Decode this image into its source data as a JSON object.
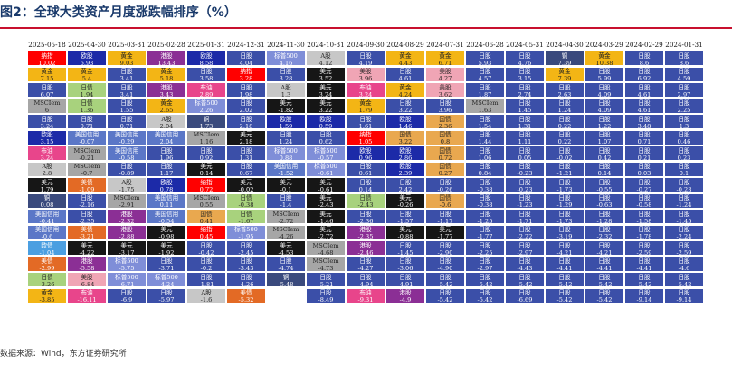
{
  "figure": {
    "title": "图2：全球大类资产月度涨跌幅排序（%）",
    "source": "数据来源：Wind，东方证券研究所"
  },
  "colors": {
    "纳指": "#ff0000",
    "欧股": "#1c2aa8",
    "黄金": "#f3b515",
    "港股": "#8b2f95",
    "欧债": "#4b9fe1",
    "日股": "#3b4fa8",
    "标普500": "#7f8ed8",
    "A股": "#c7c7c7",
    "美债": "#e36a25",
    "铜": "#3a4a7d",
    "日债": "#a8d27d",
    "美股": "#f0a5b5",
    "布油": "#e8458b",
    "美元": "#161616",
    "美国信用": "#5b77c7",
    "MSCIem": "#a6a6a6",
    "国债": "#e9a84f",
    "大宗": "#6a9f3e"
  },
  "chart_data": {
    "type": "table",
    "title": "全球大类资产月度涨跌幅排序（%）",
    "months": [
      "2025-05-18",
      "2025-04-30",
      "2025-03-31",
      "2025-02-28",
      "2025-01-31",
      "2024-12-31",
      "2024-11-30",
      "2024-10-31",
      "2024-09-30",
      "2024-08-29",
      "2024-07-31",
      "2024-06-28",
      "2024-05-31",
      "2024-04-30",
      "2024-03-29",
      "2024-02-29",
      "2024-01-31"
    ],
    "columns": [
      [
        [
          "纳指",
          "10.02"
        ],
        [
          "黄金",
          "7.15"
        ],
        [
          "日股",
          "6.07"
        ],
        [
          "MSCIem",
          "6"
        ],
        [
          "日股",
          "3.24"
        ],
        [
          "欧股",
          "3.15"
        ],
        [
          "布油",
          "3.24"
        ],
        [
          "A股",
          "2.8"
        ],
        [
          "美元",
          "1.79"
        ],
        [
          "铜",
          "0.08"
        ],
        [
          "美国信用",
          "-0.41"
        ],
        [
          "美国信用",
          "-0.6"
        ],
        [
          "欧债",
          "-1.04"
        ],
        [
          "美债",
          "-2.99"
        ],
        [
          "日债",
          "-3.26"
        ],
        [
          "黄金",
          "-3.85"
        ]
      ],
      [
        [
          "欧股",
          "6.93"
        ],
        [
          "黄金",
          "5.4"
        ],
        [
          "日债",
          "1.94"
        ],
        [
          "日债",
          "1.36"
        ],
        [
          "日股",
          "0.71"
        ],
        [
          "美国信用",
          "-0.07"
        ],
        [
          "MSCIem",
          "-0.21"
        ],
        [
          "MSCIem",
          "-0.7"
        ],
        [
          "美债",
          "-1.09"
        ],
        [
          "日股",
          "-2.16"
        ],
        [
          "日股",
          "-2.35"
        ],
        [
          "美债",
          "-3.21"
        ],
        [
          "美元",
          "-4.22"
        ],
        [
          "港股",
          "-5.58"
        ],
        [
          "美股",
          "-6.84"
        ],
        [
          "布油",
          "-16.11"
        ]
      ],
      [
        [
          "黄金",
          "9.03"
        ],
        [
          "日股",
          "3.41"
        ],
        [
          "日股",
          "3.41"
        ],
        [
          "日股",
          "1.55"
        ],
        [
          "日股",
          "0.71"
        ],
        [
          "美国信用",
          "-0.29"
        ],
        [
          "美国信用",
          "-0.58"
        ],
        [
          "日股",
          "-0.89"
        ],
        [
          "A股",
          "-1.75"
        ],
        [
          "MSCIem",
          "-2.91"
        ],
        [
          "港股",
          "-2.32"
        ],
        [
          "港股",
          "-2.88"
        ],
        [
          "美元",
          "-3.17"
        ],
        [
          "标普500",
          "-5.75"
        ],
        [
          "标普500",
          "-6.71"
        ],
        [
          "日股",
          "-6.9"
        ]
      ],
      [
        [
          "港股",
          "13.43"
        ],
        [
          "黄金",
          "5.18"
        ],
        [
          "港股",
          "3.43"
        ],
        [
          "黄金",
          "2.65"
        ],
        [
          "A股",
          "2.04"
        ],
        [
          "美国信用",
          "2.04"
        ],
        [
          "日股",
          "1.96"
        ],
        [
          "日股",
          "1.17"
        ],
        [
          "欧股",
          "0.78"
        ],
        [
          "美国信用",
          "0.11"
        ],
        [
          "美国信用",
          "-0.54"
        ],
        [
          "美元",
          "-0.98"
        ],
        [
          "美元",
          "-1.92"
        ],
        [
          "日股",
          "-3.71"
        ],
        [
          "标普500",
          "-4.24"
        ],
        [
          "日股",
          "-5.97"
        ]
      ],
      [
        [
          "欧股",
          "8.58"
        ],
        [
          "日股",
          "3.58"
        ],
        [
          "布油",
          "2.89"
        ],
        [
          "标普500",
          "2.26"
        ],
        [
          "铜",
          "1.73"
        ],
        [
          "MSCIem",
          "1.16"
        ],
        [
          "日股",
          "0.92"
        ],
        [
          "美元",
          "0.14"
        ],
        [
          "纳指",
          "0.72"
        ],
        [
          "MSCIem",
          "0.55"
        ],
        [
          "国债",
          "0.41"
        ],
        [
          "纳指",
          "0.45"
        ],
        [
          "日股",
          "-0.42"
        ],
        [
          "日股",
          "-0.2"
        ],
        [
          "日股",
          "-1.81"
        ],
        [
          "A股",
          "-1.6"
        ]
      ],
      [
        [
          "日股",
          "4.04"
        ],
        [
          "纳指",
          "3.28"
        ],
        [
          "日股",
          "1.98"
        ],
        [
          "日股",
          "2.02"
        ],
        [
          "日股",
          "2.18"
        ],
        [
          "美元",
          "2.18"
        ],
        [
          "日股",
          "1.31"
        ],
        [
          "日股",
          "0.67"
        ],
        [
          "美元",
          "-0.02"
        ],
        [
          "日债",
          "-0.38"
        ],
        [
          "日债",
          "-1.67"
        ],
        [
          "标普500",
          "-1.95"
        ],
        [
          "日股",
          "-2.45"
        ],
        [
          "日股",
          "-3.43"
        ],
        [
          "日股",
          "-4.26"
        ],
        [
          "美债",
          "-5.32"
        ]
      ],
      [
        [
          "标普500",
          "4.16"
        ],
        [
          "日股",
          "3.28"
        ],
        [
          "A股",
          "1.3"
        ],
        [
          "美元",
          "-1.82"
        ],
        [
          "欧股",
          "1.59"
        ],
        [
          "日股",
          "1.24"
        ],
        [
          "标普500",
          "0.88"
        ],
        [
          "美国信用",
          "-1.52"
        ],
        [
          "美元",
          "-0.1"
        ],
        [
          "日股",
          "-1.4"
        ],
        [
          "MSCIem",
          "-2.72"
        ],
        [
          "MSCIem",
          "-4.26"
        ],
        [
          "美元",
          "-4.53"
        ],
        [
          "日股",
          "-4.74"
        ],
        [
          "铜",
          "-5.48"
        ]
      ],
      [
        [
          "A股",
          "4.12"
        ],
        [
          "美元",
          "3.52"
        ],
        [
          "美元",
          "3.24"
        ],
        [
          "美元",
          "3.22"
        ],
        [
          "欧股",
          "0.59"
        ],
        [
          "日股",
          "0.62"
        ],
        [
          "标普500",
          "-0.57"
        ],
        [
          "标普500",
          "-0.61"
        ],
        [
          "美元",
          "-0.61"
        ],
        [
          "美元",
          "-2.43"
        ],
        [
          "美元",
          "-1.46"
        ],
        [
          "美元",
          "-2.72"
        ],
        [
          "MSCIem",
          "-4.68"
        ],
        [
          "MSCIem",
          "-4.73"
        ],
        [
          "日股",
          "-5.21"
        ],
        [
          "日股",
          "-8.49"
        ]
      ],
      [
        [
          "日股",
          "4.19"
        ],
        [
          "美股",
          "3.96"
        ],
        [
          "布油",
          "3.24"
        ],
        [
          "黄金",
          "1.79"
        ],
        [
          "日股",
          "1.61"
        ],
        [
          "纳指",
          "1.05"
        ],
        [
          "欧股",
          "0.96"
        ],
        [
          "日股",
          "0.61"
        ],
        [
          "日股",
          "0.14"
        ],
        [
          "日债",
          "-2.43"
        ],
        [
          "日股",
          "-2.36"
        ],
        [
          "港股",
          "-2.35"
        ],
        [
          "港股",
          "-2.46"
        ],
        [
          "日股",
          "-4.27"
        ],
        [
          "日股",
          "-4.94"
        ],
        [
          "布油",
          "-9.31"
        ]
      ],
      [
        [
          "黄金",
          "4.43"
        ],
        [
          "日股",
          "4.61"
        ],
        [
          "黄金",
          "4.24"
        ],
        [
          "日股",
          "3.22"
        ],
        [
          "欧股",
          "1.46"
        ],
        [
          "国债",
          "3.22"
        ],
        [
          "欧股",
          "2.86"
        ],
        [
          "欧股",
          "2.39"
        ],
        [
          "日股",
          "2.42"
        ],
        [
          "美元",
          "-0.26"
        ],
        [
          "日股",
          "-1.57"
        ],
        [
          "美元",
          "-0.88"
        ],
        [
          "日股",
          "-1.45"
        ],
        [
          "日股",
          "-3.06"
        ],
        [
          "日股",
          "-4.91"
        ],
        [
          "港股",
          "-4.9"
        ]
      ],
      [
        [
          "黄金",
          "6.71"
        ],
        [
          "美股",
          "4.27"
        ],
        [
          "美股",
          "3.62"
        ],
        [
          "日股",
          "3.96"
        ],
        [
          "国债",
          "2.36"
        ],
        [
          "国债",
          "0.8"
        ],
        [
          "国债",
          "0.72"
        ],
        [
          "国债",
          "0.27"
        ],
        [
          "日股",
          "-0.26"
        ],
        [
          "国债",
          "-0.6"
        ],
        [
          "日股",
          "-1.17"
        ],
        [
          "美元",
          "-1.77"
        ],
        [
          "日股",
          "-2.90"
        ],
        [
          "日股",
          "-4.90"
        ],
        [
          "日股",
          "-5.42"
        ],
        [
          "日股",
          "-5.42"
        ]
      ],
      [
        [
          "日股",
          "5.93"
        ],
        [
          "日股",
          "4.57"
        ],
        [
          "日股",
          "1.87"
        ],
        [
          "MSCIem",
          "1.63"
        ],
        [
          "日股",
          "1.54"
        ],
        [
          "日股",
          "1.44"
        ],
        [
          "日股",
          "1.06"
        ],
        [
          "日股",
          "0.84"
        ],
        [
          "日股",
          "-0.38"
        ],
        [
          "日股",
          "-0.38"
        ],
        [
          "日股",
          "-1.25"
        ],
        [
          "日股",
          "-1.77"
        ],
        [
          "日股",
          "-2.25"
        ],
        [
          "日股",
          "-2.97"
        ],
        [
          "日股",
          "-5.42"
        ],
        [
          "日股",
          "-5.42"
        ]
      ],
      [
        [
          "日股",
          "4.76"
        ],
        [
          "日股",
          "3.15"
        ],
        [
          "日股",
          "2.74"
        ],
        [
          "日股",
          "1.45"
        ],
        [
          "日股",
          "1.31"
        ],
        [
          "日股",
          "1.11"
        ],
        [
          "日股",
          "0.05"
        ],
        [
          "日股",
          "-0.23"
        ],
        [
          "日股",
          "-0.23"
        ],
        [
          "日股",
          "-1.23"
        ],
        [
          "日股",
          "-1.71"
        ],
        [
          "日股",
          "-2.22"
        ],
        [
          "日股",
          "-2.97"
        ],
        [
          "日股",
          "-4.43"
        ],
        [
          "日股",
          "-5.42"
        ],
        [
          "日股",
          "-6.69"
        ]
      ],
      [
        [
          "铜",
          "7.39"
        ],
        [
          "黄金",
          "7.39"
        ],
        [
          "日股",
          "2.63"
        ],
        [
          "日股",
          "1.24"
        ],
        [
          "日股",
          "0.22"
        ],
        [
          "日股",
          "0.22"
        ],
        [
          "日股",
          "-0.02"
        ],
        [
          "日股",
          "-1.21"
        ],
        [
          "日股",
          "-1.73"
        ],
        [
          "日股",
          "-1.29"
        ],
        [
          "日股",
          "-1.73"
        ],
        [
          "日股",
          "-3.19"
        ],
        [
          "日股",
          "-4.21"
        ],
        [
          "日股",
          "-4.41"
        ],
        [
          "日股",
          "-5.42"
        ],
        [
          "日股",
          "-5.42"
        ]
      ],
      [
        [
          "黄金",
          "10.38"
        ],
        [
          "日股",
          "5.99"
        ],
        [
          "日股",
          "4.09"
        ],
        [
          "日股",
          "4.09"
        ],
        [
          "日股",
          "1.22"
        ],
        [
          "日股",
          "1.07"
        ],
        [
          "日股",
          "0.42"
        ],
        [
          "日股",
          "0.14"
        ],
        [
          "日股",
          "-0.55"
        ],
        [
          "日股",
          "-0.63"
        ],
        [
          "日股",
          "-1.28"
        ],
        [
          "日股",
          "-2.32"
        ],
        [
          "日股",
          "-4.21"
        ],
        [
          "日股",
          "-4.41"
        ],
        [
          "日股",
          "-5.42"
        ],
        [
          "日股",
          "-5.42"
        ]
      ],
      [
        [
          "日股",
          "8.6"
        ],
        [
          "日股",
          "6.92"
        ],
        [
          "日股",
          "4.61"
        ],
        [
          "日股",
          "4.61"
        ],
        [
          "日股",
          "3.48"
        ],
        [
          "日股",
          "0.71"
        ],
        [
          "日股",
          "0.21"
        ],
        [
          "日股",
          "0.03"
        ],
        [
          "日股",
          "-0.27"
        ],
        [
          "日股",
          "-0.58"
        ],
        [
          "日股",
          "-1.58"
        ],
        [
          "日股",
          "-1.78"
        ],
        [
          "日股",
          "-2.59"
        ],
        [
          "日股",
          "-4.41"
        ],
        [
          "日股",
          "-5.42"
        ],
        [
          "日股",
          "-9.14"
        ]
      ],
      [
        [
          "日股",
          "8.6"
        ],
        [
          "日股",
          "4.59"
        ],
        [
          "日股",
          "2.97"
        ],
        [
          "日股",
          "2.25"
        ],
        [
          "日股",
          "1.3"
        ],
        [
          "日股",
          "0.46"
        ],
        [
          "日股",
          "0.23"
        ],
        [
          "日股",
          "0.1"
        ],
        [
          "日股",
          "-0.23"
        ],
        [
          "日股",
          "-1.24"
        ],
        [
          "日股",
          "-1.45"
        ],
        [
          "日股",
          "-2.24"
        ],
        [
          "日股",
          "-2.59"
        ],
        [
          "日股",
          "-4.6"
        ],
        [
          "日股",
          "-5.42"
        ],
        [
          "日股",
          "-9.14"
        ]
      ]
    ]
  }
}
